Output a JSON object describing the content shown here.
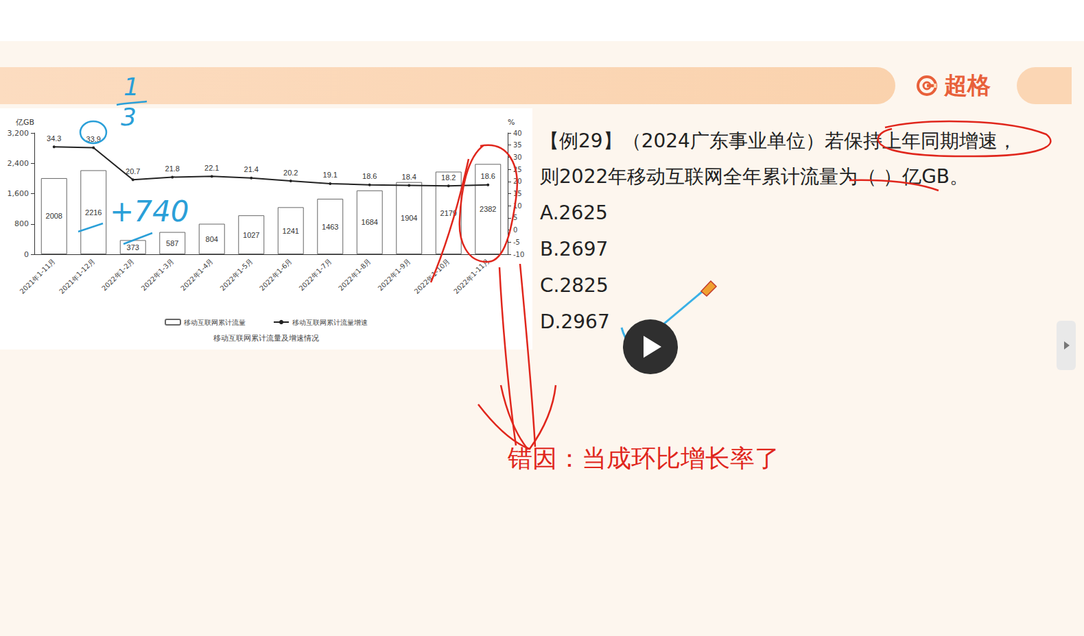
{
  "header": {
    "logo": "超格"
  },
  "chart_data": {
    "type": "bar",
    "title": "移动互联网累计流量及增速情况",
    "y_label": "亿GB",
    "y2_label": "%",
    "categories": [
      "2021年1-11月",
      "2021年1-12月",
      "2022年1-2月",
      "2022年1-3月",
      "2022年1-4月",
      "2022年1-5月",
      "2022年1-6月",
      "2022年1-7月",
      "2022年1-8月",
      "2022年1-9月",
      "2022年1-10月",
      "2022年1-11月"
    ],
    "series": [
      {
        "name": "移动互联网累计流量",
        "type": "bar",
        "color": "#ffffff",
        "values": [
          2008,
          2216,
          373,
          587,
          804,
          1027,
          1241,
          1463,
          1684,
          1904,
          2179,
          2382
        ]
      },
      {
        "name": "移动互联网累计流量增速",
        "type": "line",
        "axis": "y2",
        "color": "#222222",
        "marker": "circle",
        "values": [
          34.3,
          33.9,
          20.7,
          21.8,
          22.1,
          21.4,
          20.2,
          19.1,
          18.6,
          18.4,
          18.2,
          18.6
        ]
      }
    ],
    "ylim": [
      0,
      3200
    ],
    "yticks": [
      0,
      800,
      1600,
      2400,
      3200
    ],
    "y2lim": [
      -10,
      40
    ],
    "y2ticks": [
      -10,
      -5,
      0,
      5,
      10,
      15,
      20,
      25,
      30,
      35,
      40
    ],
    "data_labels": true,
    "grid": false,
    "legend": "bottom"
  },
  "question": {
    "lines": [
      "【例29】（2024广东事业单位）若保持上年同期增速，",
      "则2022年移动互联网全年累计流量为（   ）亿GB。"
    ],
    "options": [
      "A.2625",
      "B.2697",
      "C.2825",
      "D.2967"
    ]
  },
  "annotations": {
    "error_note": "错因：当成环比增长率了",
    "handwriting": {
      "fraction_top": "1",
      "fraction_bottom": "3",
      "difference": "+740"
    }
  }
}
